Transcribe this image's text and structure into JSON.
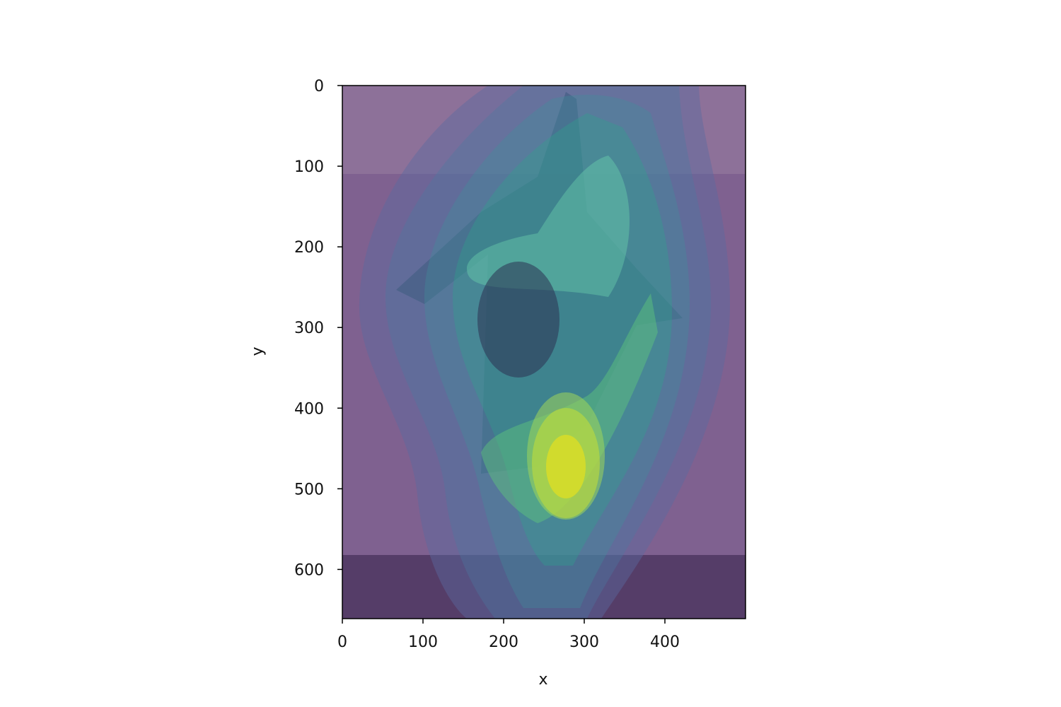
{
  "chart_data": {
    "type": "contour",
    "x_label": "x",
    "y_label": "y",
    "xlim": [
      0,
      500
    ],
    "ylim": [
      661,
      0
    ],
    "xticks": [
      0,
      100,
      200,
      300,
      400
    ],
    "yticks": [
      0,
      100,
      200,
      300,
      400,
      500,
      600
    ]
  }
}
